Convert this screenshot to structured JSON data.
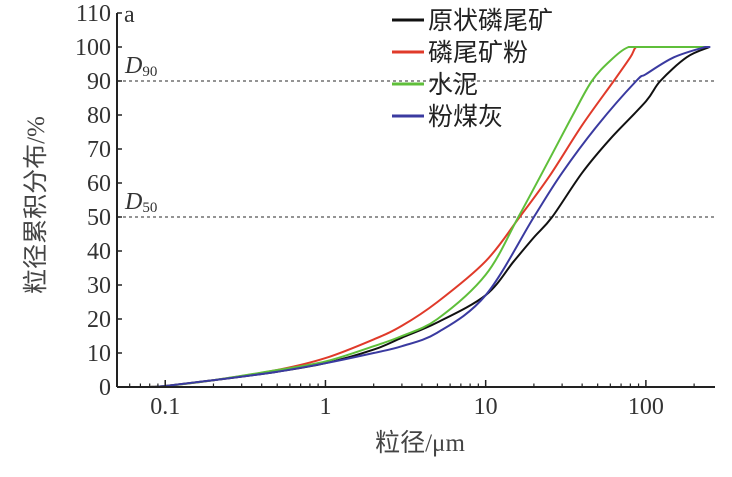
{
  "chart_data": {
    "type": "line",
    "panel_label": "a",
    "xlabel": "粒径/μm",
    "ylabel": "粒径累积分布/%",
    "x_scale": "log",
    "xlim": [
      0.05,
      270
    ],
    "ylim": [
      0,
      110
    ],
    "x_ticks": [
      0.1,
      1,
      10,
      100
    ],
    "x_tick_labels": [
      "0.1",
      "1",
      "10",
      "100"
    ],
    "y_ticks": [
      0,
      10,
      20,
      30,
      40,
      50,
      60,
      70,
      80,
      90,
      100,
      110
    ],
    "y_tick_labels": [
      "0",
      "10",
      "20",
      "30",
      "40",
      "50",
      "60",
      "70",
      "80",
      "90",
      "100",
      "110"
    ],
    "grid": false,
    "legend_position": "top-center",
    "reference_lines": [
      {
        "label": "D",
        "subscript": "90",
        "y": 90
      },
      {
        "label": "D",
        "subscript": "50",
        "y": 50
      }
    ],
    "series": [
      {
        "name": "原状磷尾矿",
        "color": "#111111",
        "x": [
          0.08,
          0.1,
          0.2,
          0.5,
          1,
          2,
          3,
          5,
          10,
          15,
          20,
          26,
          40,
          60,
          100,
          123,
          180,
          250
        ],
        "y": [
          0,
          0.3,
          2,
          4.5,
          7,
          11,
          14.5,
          19,
          27,
          37,
          44,
          50,
          63,
          73,
          84,
          90,
          97,
          100
        ]
      },
      {
        "name": "磷尾矿粉",
        "color": "#e03a2a",
        "x": [
          0.08,
          0.1,
          0.2,
          0.5,
          1,
          2,
          3,
          5,
          10,
          16.3,
          25,
          40,
          63,
          80,
          87,
          100,
          250
        ],
        "y": [
          0,
          0.3,
          2,
          5,
          8.5,
          14,
          18,
          25,
          37,
          50,
          62,
          77,
          90,
          97,
          100,
          100,
          100
        ]
      },
      {
        "name": "水泥",
        "color": "#5fbf3a",
        "x": [
          0.08,
          0.1,
          0.2,
          0.5,
          1,
          2,
          3,
          5,
          10,
          16,
          25,
          35,
          46,
          60,
          78,
          100,
          250
        ],
        "y": [
          0,
          0.3,
          2,
          5,
          7.5,
          12,
          15,
          20,
          33,
          50,
          67,
          80,
          90,
          96,
          100,
          100,
          100
        ]
      },
      {
        "name": "粉煤灰",
        "color": "#3a3aa0",
        "x": [
          0.08,
          0.1,
          0.2,
          0.5,
          1,
          2,
          3,
          5,
          10,
          20,
          30,
          50,
          87,
          100,
          150,
          235,
          250
        ],
        "y": [
          0,
          0.3,
          2,
          4.5,
          7,
          10,
          12,
          16,
          27,
          50,
          63,
          77,
          90,
          92,
          97,
          100,
          100
        ]
      }
    ]
  }
}
